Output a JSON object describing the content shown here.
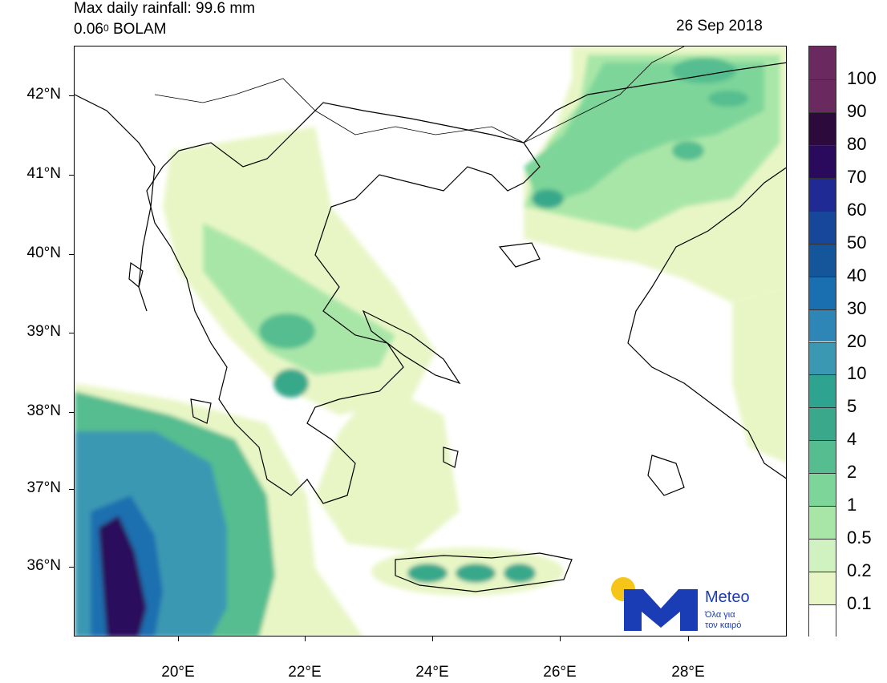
{
  "header": {
    "title_line1": "Max daily rainfall: 99.6 mm",
    "title_line2_prefix": "0.06",
    "title_line2_sup": "0",
    "title_line2_suffix": " BOLAM",
    "date": "26 Sep 2018"
  },
  "axes": {
    "lat_labels": [
      "42°N",
      "41°N",
      "40°N",
      "39°N",
      "38°N",
      "37°N",
      "36°N"
    ],
    "lon_labels": [
      "20°E",
      "22°E",
      "24°E",
      "26°E",
      "28°E"
    ]
  },
  "colorbar": {
    "labels": [
      "100",
      "90",
      "80",
      "70",
      "60",
      "50",
      "40",
      "30",
      "20",
      "10",
      "5",
      "4",
      "2",
      "1",
      "0.5",
      "0.2",
      "0.1"
    ],
    "colors": [
      "#6b2a5f",
      "#2d0a3c",
      "#2a0a5c",
      "#1f2a94",
      "#17479a",
      "#15559a",
      "#1a6fb0",
      "#2e86b6",
      "#3a98b2",
      "#2ea38f",
      "#39a88b",
      "#55bd8f",
      "#7dd59a",
      "#a8e6a8",
      "#cff2c0",
      "#e8f6c6",
      "#ffffff"
    ]
  },
  "logo": {
    "name": "Meteo",
    "tagline_1": "Όλα για",
    "tagline_2": "τον καιρό",
    "brand_color": "#1a3cb4",
    "sun_color": "#f5c518"
  },
  "map": {
    "region": "Greece and Aegean Sea",
    "variable": "Max daily rainfall (mm)",
    "max_value_mm": 99.6,
    "max_location": "Ionian Sea, southwest of Peloponnese"
  }
}
